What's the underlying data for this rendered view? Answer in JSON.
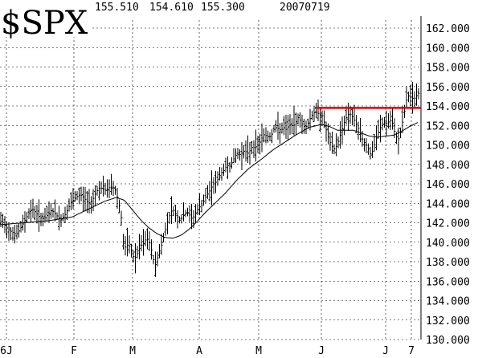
{
  "chart_data": {
    "type": "bar",
    "style": "OHLC price bars with moving average and horizontal resistance line",
    "symbol": "$SPX",
    "header": {
      "values": [
        "155.510",
        "154.610",
        "155.300"
      ],
      "date": "20070719"
    },
    "y_ticks": [
      "162.000",
      "160.000",
      "158.000",
      "156.000",
      "154.000",
      "152.000",
      "150.000",
      "148.000",
      "146.000",
      "144.000",
      "142.000",
      "140.000",
      "138.000",
      "136.000",
      "134.000",
      "132.000",
      "130.000"
    ],
    "x_ticks": [
      "6J",
      "F",
      "M",
      "A",
      "M",
      "J",
      "J",
      "7"
    ],
    "ylim": [
      130,
      163
    ],
    "grid": true,
    "resistance_level": 153.8,
    "colors": {
      "bars": "#000000",
      "moving_average": "#000000",
      "resistance_line": "#e00000",
      "grid": "#000000"
    },
    "bar_anchors": [
      [
        0,
        142.2
      ],
      [
        4,
        142.0
      ],
      [
        8,
        141.5
      ],
      [
        12,
        141.2
      ],
      [
        16,
        141.0
      ],
      [
        20,
        140.8
      ],
      [
        24,
        141.2
      ],
      [
        28,
        141.8
      ],
      [
        32,
        142.4
      ],
      [
        36,
        143.0
      ],
      [
        40,
        143.4
      ],
      [
        44,
        143.1
      ],
      [
        48,
        142.7
      ],
      [
        52,
        142.4
      ],
      [
        56,
        142.5
      ],
      [
        60,
        142.9
      ],
      [
        64,
        143.3
      ],
      [
        68,
        143.0
      ],
      [
        72,
        142.6
      ],
      [
        76,
        142.3
      ],
      [
        80,
        142.7
      ],
      [
        84,
        143.3
      ],
      [
        88,
        144.0
      ],
      [
        92,
        144.4
      ],
      [
        96,
        144.7
      ],
      [
        100,
        144.9
      ],
      [
        104,
        144.6
      ],
      [
        108,
        144.2
      ],
      [
        112,
        144.0
      ],
      [
        116,
        144.5
      ],
      [
        120,
        145.2
      ],
      [
        124,
        145.6
      ],
      [
        128,
        145.5
      ],
      [
        132,
        145.3
      ],
      [
        136,
        145.6
      ],
      [
        140,
        145.7
      ],
      [
        144,
        145.3
      ],
      [
        148,
        144.0
      ],
      [
        151,
        142.5
      ],
      [
        153,
        140.2
      ],
      [
        156,
        139.5
      ],
      [
        160,
        139.8
      ],
      [
        164,
        139.0
      ],
      [
        167,
        138.3
      ],
      [
        170,
        138.6
      ],
      [
        173,
        139.3
      ],
      [
        176,
        139.7
      ],
      [
        179,
        139.9
      ],
      [
        182,
        140.4
      ],
      [
        185,
        140.2
      ],
      [
        188,
        139.4
      ],
      [
        191,
        138.2
      ],
      [
        194,
        137.6
      ],
      [
        197,
        138.8
      ],
      [
        200,
        139.4
      ],
      [
        203,
        140.3
      ],
      [
        206,
        141.3
      ],
      [
        209,
        142.2
      ],
      [
        212,
        143.0
      ],
      [
        215,
        143.4
      ],
      [
        218,
        143.0
      ],
      [
        221,
        142.6
      ],
      [
        224,
        142.2
      ],
      [
        227,
        142.6
      ],
      [
        230,
        142.9
      ],
      [
        233,
        143.1
      ],
      [
        236,
        142.8
      ],
      [
        239,
        142.4
      ],
      [
        242,
        142.7
      ],
      [
        245,
        143.2
      ],
      [
        248,
        143.6
      ],
      [
        251,
        143.8
      ],
      [
        254,
        144.3
      ],
      [
        257,
        144.8
      ],
      [
        260,
        145.1
      ],
      [
        263,
        145.6
      ],
      [
        266,
        146.0
      ],
      [
        269,
        146.2
      ],
      [
        272,
        146.6
      ],
      [
        275,
        147.1
      ],
      [
        278,
        147.3
      ],
      [
        281,
        147.7
      ],
      [
        284,
        147.9
      ],
      [
        287,
        147.9
      ],
      [
        290,
        148.4
      ],
      [
        293,
        148.9
      ],
      [
        296,
        149.0
      ],
      [
        299,
        149.0
      ],
      [
        302,
        149.3
      ],
      [
        305,
        149.4
      ],
      [
        308,
        149.1
      ],
      [
        311,
        149.4
      ],
      [
        314,
        149.8
      ],
      [
        317,
        149.7
      ],
      [
        320,
        149.9
      ],
      [
        323,
        150.2
      ],
      [
        326,
        150.7
      ],
      [
        329,
        151.1
      ],
      [
        332,
        150.9
      ],
      [
        335,
        150.8
      ],
      [
        338,
        151.0
      ],
      [
        341,
        151.6
      ],
      [
        344,
        151.8
      ],
      [
        347,
        151.6
      ],
      [
        350,
        151.5
      ],
      [
        353,
        151.8
      ],
      [
        356,
        151.6
      ],
      [
        359,
        151.9
      ],
      [
        362,
        152.1
      ],
      [
        365,
        151.9
      ],
      [
        368,
        152.3
      ],
      [
        371,
        152.8
      ],
      [
        374,
        152.5
      ],
      [
        377,
        152.0
      ],
      [
        380,
        151.8
      ],
      [
        383,
        152.1
      ],
      [
        386,
        152.7
      ],
      [
        389,
        153.1
      ],
      [
        392,
        153.4
      ],
      [
        395,
        153.3
      ],
      [
        398,
        153.1
      ],
      [
        401,
        153.0
      ],
      [
        404,
        152.2
      ],
      [
        407,
        151.2
      ],
      [
        410,
        150.4
      ],
      [
        413,
        149.9
      ],
      [
        416,
        149.6
      ],
      [
        419,
        149.9
      ],
      [
        422,
        150.6
      ],
      [
        425,
        151.4
      ],
      [
        428,
        152.2
      ],
      [
        431,
        152.8
      ],
      [
        434,
        153.2
      ],
      [
        437,
        153.1
      ],
      [
        440,
        152.7
      ],
      [
        443,
        152.2
      ],
      [
        446,
        151.7
      ],
      [
        449,
        151.0
      ],
      [
        452,
        150.4
      ],
      [
        455,
        150.1
      ],
      [
        458,
        149.7
      ],
      [
        461,
        149.1
      ],
      [
        464,
        149.4
      ],
      [
        467,
        150.3
      ],
      [
        470,
        151.1
      ],
      [
        473,
        151.7
      ],
      [
        476,
        152.1
      ],
      [
        479,
        152.3
      ],
      [
        482,
        152.2
      ],
      [
        485,
        152.5
      ],
      [
        488,
        152.4
      ],
      [
        491,
        151.4
      ],
      [
        494,
        150.7
      ],
      [
        497,
        150.6
      ],
      [
        500,
        151.9
      ],
      [
        503,
        153.2
      ],
      [
        506,
        154.6
      ],
      [
        509,
        155.1
      ],
      [
        512,
        154.9
      ],
      [
        515,
        154.7
      ],
      [
        518,
        155.0
      ],
      [
        521,
        155.3
      ]
    ],
    "moving_average_anchors": [
      [
        0,
        141.8
      ],
      [
        30,
        142.0
      ],
      [
        60,
        142.2
      ],
      [
        90,
        142.6
      ],
      [
        110,
        143.4
      ],
      [
        130,
        144.2
      ],
      [
        145,
        144.6
      ],
      [
        155,
        144.3
      ],
      [
        165,
        143.3
      ],
      [
        175,
        142.3
      ],
      [
        185,
        141.5
      ],
      [
        195,
        140.9
      ],
      [
        205,
        140.5
      ],
      [
        215,
        140.4
      ],
      [
        225,
        140.7
      ],
      [
        235,
        141.3
      ],
      [
        245,
        142.1
      ],
      [
        255,
        143.0
      ],
      [
        265,
        143.8
      ],
      [
        280,
        145.0
      ],
      [
        295,
        146.4
      ],
      [
        310,
        147.6
      ],
      [
        325,
        148.5
      ],
      [
        340,
        149.5
      ],
      [
        355,
        150.3
      ],
      [
        370,
        151.1
      ],
      [
        385,
        151.8
      ],
      [
        400,
        152.1
      ],
      [
        410,
        151.9
      ],
      [
        420,
        151.5
      ],
      [
        430,
        151.5
      ],
      [
        440,
        151.5
      ],
      [
        450,
        151.2
      ],
      [
        460,
        150.9
      ],
      [
        470,
        150.8
      ],
      [
        480,
        150.9
      ],
      [
        490,
        151.0
      ],
      [
        500,
        151.4
      ],
      [
        510,
        151.9
      ],
      [
        520,
        152.3
      ]
    ]
  }
}
